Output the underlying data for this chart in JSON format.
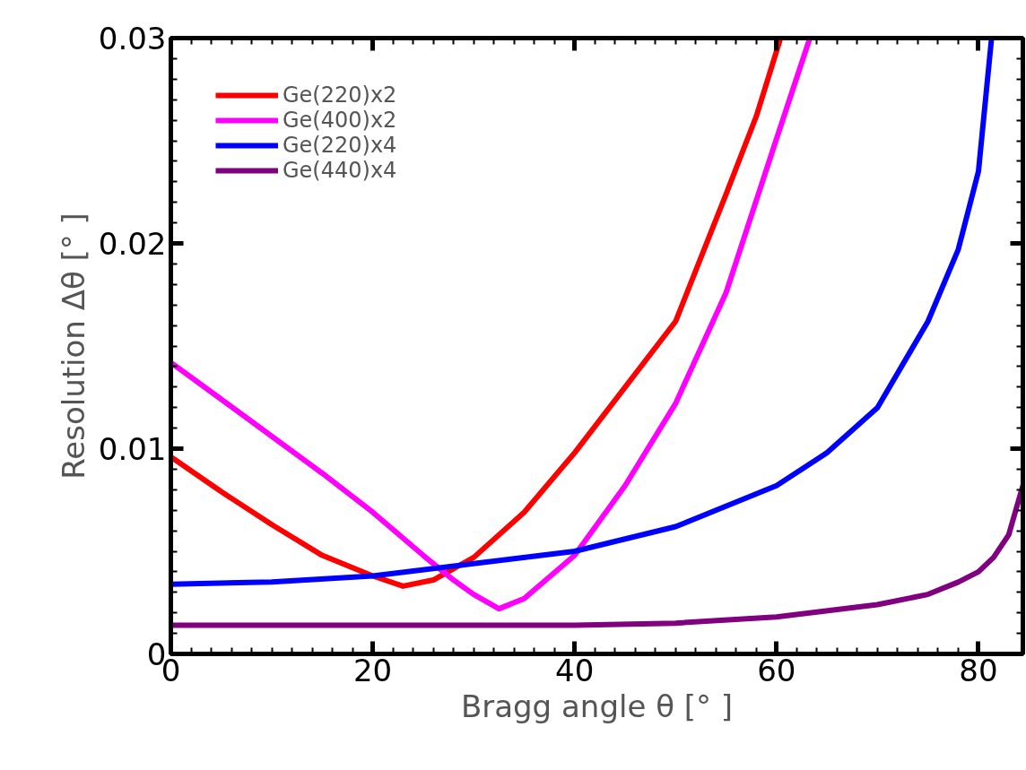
{
  "chart_data": {
    "type": "line",
    "xlabel": "Bragg angle θ [° ]",
    "ylabel": "Resolution Δθ [° ]",
    "xlim": [
      0,
      84.4
    ],
    "ylim": [
      0,
      0.03
    ],
    "xticks": [
      0,
      20,
      40,
      60,
      80
    ],
    "yticks": [
      0,
      0.01,
      0.02,
      0.03
    ],
    "grid": false,
    "legend": "top left",
    "marker": "none",
    "line_style": "solid",
    "series": [
      {
        "name": "Ge(220)x2",
        "color": "#ff0000",
        "x": [
          0,
          5,
          10,
          15,
          20,
          23,
          26,
          30,
          35,
          40,
          45,
          50,
          55,
          58,
          60.4
        ],
        "values": [
          0.0096,
          0.0079,
          0.0063,
          0.0048,
          0.0038,
          0.0033,
          0.0036,
          0.0047,
          0.0069,
          0.0098,
          0.013,
          0.0162,
          0.0224,
          0.0262,
          0.03
        ]
      },
      {
        "name": "Ge(400)x2",
        "color": "#ff00ff",
        "x": [
          0,
          5,
          10,
          15,
          20,
          25,
          28,
          30,
          32.5,
          35,
          40,
          45,
          50,
          55,
          60,
          63.3
        ],
        "values": [
          0.0142,
          0.0124,
          0.0106,
          0.0088,
          0.0069,
          0.0048,
          0.0036,
          0.0029,
          0.0022,
          0.0027,
          0.0048,
          0.0082,
          0.0122,
          0.0176,
          0.0251,
          0.03
        ]
      },
      {
        "name": "Ge(220)x4",
        "color": "#0000ff",
        "x": [
          0,
          10,
          20,
          30,
          40,
          50,
          60,
          65,
          70,
          75,
          78,
          80,
          81.3
        ],
        "values": [
          0.0034,
          0.0035,
          0.0038,
          0.0044,
          0.005,
          0.0062,
          0.0082,
          0.0098,
          0.012,
          0.0162,
          0.0197,
          0.0235,
          0.03
        ]
      },
      {
        "name": "Ge(440)x4",
        "color": "#800080",
        "x": [
          0,
          20,
          40,
          50,
          60,
          70,
          75,
          78,
          80,
          81.5,
          83,
          84.4
        ],
        "values": [
          0.0014,
          0.0014,
          0.0014,
          0.0015,
          0.0018,
          0.0024,
          0.0029,
          0.0035,
          0.004,
          0.0047,
          0.0058,
          0.0082
        ]
      }
    ]
  }
}
